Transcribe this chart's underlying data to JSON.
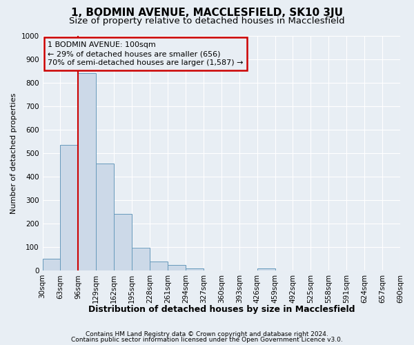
{
  "title": "1, BODMIN AVENUE, MACCLESFIELD, SK10 3JU",
  "subtitle": "Size of property relative to detached houses in Macclesfield",
  "xlabel": "Distribution of detached houses by size in Macclesfield",
  "ylabel": "Number of detached properties",
  "bin_edges": [
    30,
    63,
    96,
    129,
    162,
    195,
    228,
    261,
    294,
    327,
    360,
    393,
    426,
    459,
    492,
    525,
    558,
    591,
    624,
    657,
    690
  ],
  "bar_heights": [
    50,
    535,
    840,
    455,
    240,
    97,
    38,
    25,
    10,
    0,
    0,
    0,
    10,
    0,
    0,
    0,
    0,
    0,
    0,
    0
  ],
  "bar_color": "#ccd9e8",
  "bar_edge_color": "#6699bb",
  "background_color": "#e8eef4",
  "grid_color": "#ffffff",
  "property_line_x": 96,
  "property_line_color": "#cc0000",
  "annotation_text": "1 BODMIN AVENUE: 100sqm\n← 29% of detached houses are smaller (656)\n70% of semi-detached houses are larger (1,587) →",
  "annotation_box_edgecolor": "#cc0000",
  "ylim": [
    0,
    1000
  ],
  "yticks": [
    0,
    100,
    200,
    300,
    400,
    500,
    600,
    700,
    800,
    900,
    1000
  ],
  "footer_line1": "Contains HM Land Registry data © Crown copyright and database right 2024.",
  "footer_line2": "Contains public sector information licensed under the Open Government Licence v3.0.",
  "title_fontsize": 11,
  "subtitle_fontsize": 9.5,
  "footer_fontsize": 6.5,
  "axis_label_fontsize": 8,
  "tick_fontsize": 7.5,
  "annotation_fontsize": 8
}
